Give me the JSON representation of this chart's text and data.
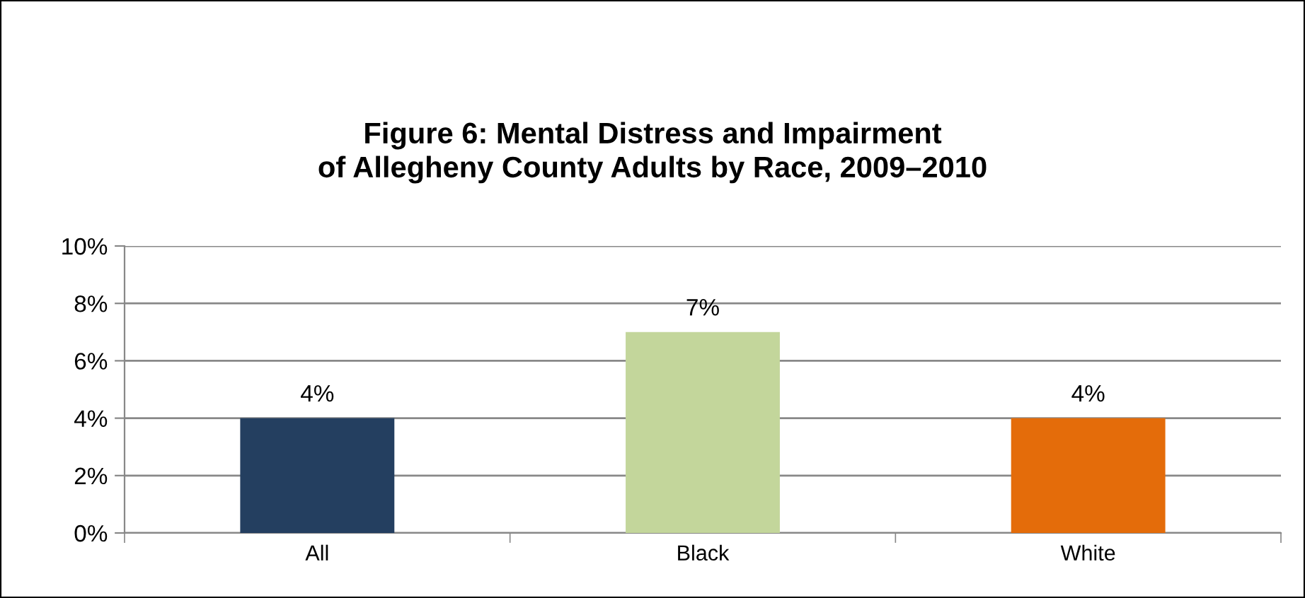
{
  "chart_data": {
    "type": "bar",
    "title": "Figure 6: Mental Distress and Impairment\nof Allegheny County Adults by Race, 2009–2010",
    "categories": [
      "All",
      "Black",
      "White"
    ],
    "values": [
      4,
      7,
      4
    ],
    "colors": [
      "#243f60",
      "#c3d69b",
      "#e46c0a"
    ],
    "value_labels": [
      "4%",
      "7%",
      "4%"
    ],
    "ylim": [
      0,
      10
    ],
    "yticks": [
      {
        "value": 0,
        "label": "0%"
      },
      {
        "value": 2,
        "label": "2%"
      },
      {
        "value": 4,
        "label": "4%"
      },
      {
        "value": 6,
        "label": "6%"
      },
      {
        "value": 8,
        "label": "8%"
      },
      {
        "value": 10,
        "label": "10%"
      }
    ],
    "grid": "y",
    "legend": false
  }
}
